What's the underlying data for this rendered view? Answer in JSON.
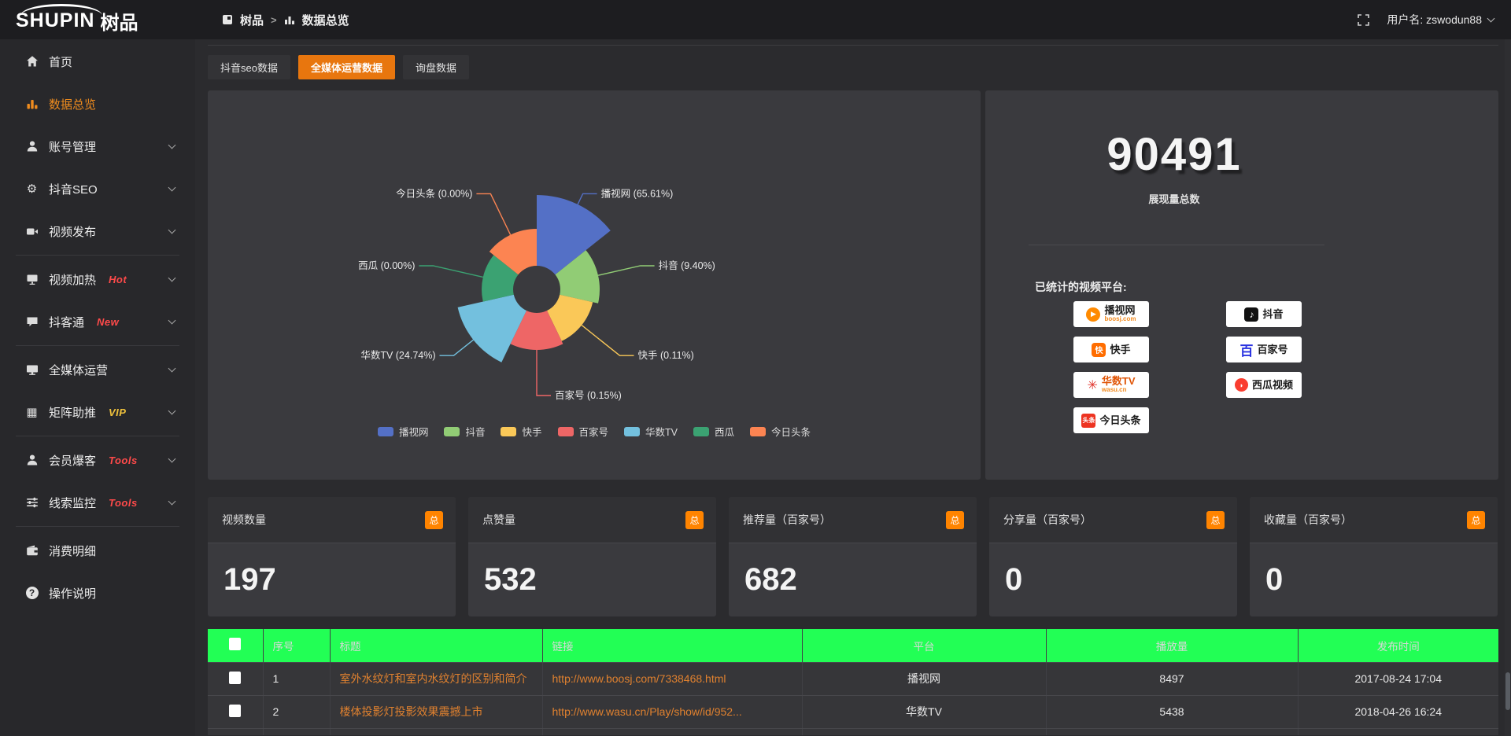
{
  "topbar": {
    "logo_main": "SHUPIN",
    "logo_sub": "树品",
    "breadcrumb": {
      "home": "树品",
      "separator": ">",
      "current": "数据总览"
    },
    "username": "用户名: zswodun88"
  },
  "sidebar": {
    "items": [
      {
        "label": "首页",
        "icon": "home"
      },
      {
        "label": "数据总览",
        "icon": "bar-chart",
        "active": true
      },
      {
        "label": "账号管理",
        "icon": "user",
        "chevron": true
      },
      {
        "label": "抖音SEO",
        "icon": "gear",
        "chevron": true
      },
      {
        "label": "视频发布",
        "icon": "video-camera",
        "chevron": true
      },
      {
        "label": "视频加热",
        "icon": "screen",
        "badge": "Hot",
        "badge_color": "#ff4a4a",
        "chevron": true
      },
      {
        "label": "抖客通",
        "icon": "chat-bubble",
        "badge": "New",
        "badge_color": "#ff4a4a",
        "chevron": true
      },
      {
        "label": "全媒体运营",
        "icon": "monitor",
        "chevron": true
      },
      {
        "label": "矩阵助推",
        "icon": "grid",
        "badge": "VIP",
        "badge_color": "#f0c23c",
        "chevron": true
      },
      {
        "label": "会员爆客",
        "icon": "person",
        "badge": "Tools",
        "badge_color": "#ff4a4a",
        "chevron": true
      },
      {
        "label": "线索监控",
        "icon": "sliders",
        "badge": "Tools",
        "badge_color": "#ff4a4a",
        "chevron": true
      },
      {
        "label": "消费明细",
        "icon": "wallet"
      },
      {
        "label": "操作说明",
        "icon": "question-circle"
      }
    ]
  },
  "tabs": [
    {
      "label": "抖音seo数据"
    },
    {
      "label": "全媒体运营数据",
      "active": true
    },
    {
      "label": "询盘数据"
    }
  ],
  "chart_data": {
    "type": "pie",
    "subtype": "nightingale-rose",
    "title": "",
    "inner_radius": 30,
    "label_radius": 135,
    "legend_position": "bottom",
    "series": [
      {
        "name": "播视网",
        "pct": 65.61,
        "color": "#5470c6",
        "radius": 120
      },
      {
        "name": "抖音",
        "pct": 9.4,
        "color": "#91cc75",
        "radius": 80
      },
      {
        "name": "快手",
        "pct": 0.11,
        "color": "#fac858",
        "radius": 73
      },
      {
        "name": "百家号",
        "pct": 0.15,
        "color": "#ee6666",
        "radius": 77
      },
      {
        "name": "华数TV",
        "pct": 24.74,
        "color": "#73c0de",
        "radius": 103
      },
      {
        "name": "西瓜",
        "pct": 0.0,
        "color": "#3ba272",
        "radius": 70
      },
      {
        "name": "今日头条",
        "pct": 0.0,
        "color": "#fc8452",
        "radius": 77
      }
    ]
  },
  "summary": {
    "total_value": "90491",
    "total_label": "展现量总数",
    "platforms_label": "已统计的视频平台:",
    "platforms": [
      {
        "name": "播视网",
        "sub": "boosj.com"
      },
      {
        "name": "快手"
      },
      {
        "name": "华数TV",
        "sub": "wasu.cn"
      },
      {
        "name": "今日头条"
      },
      {
        "name": "抖音"
      },
      {
        "name": "百家号"
      },
      {
        "name": "西瓜视频"
      }
    ]
  },
  "stat_cards": [
    {
      "label": "视频数量",
      "badge": "总",
      "value": "197"
    },
    {
      "label": "点赞量",
      "badge": "总",
      "value": "532"
    },
    {
      "label": "推荐量（百家号）",
      "badge": "总",
      "value": "682"
    },
    {
      "label": "分享量（百家号）",
      "badge": "总",
      "value": "0"
    },
    {
      "label": "收藏量（百家号）",
      "badge": "总",
      "value": "0"
    }
  ],
  "table": {
    "columns": [
      "序号",
      "标题",
      "链接",
      "平台",
      "播放量",
      "发布时间"
    ],
    "rows": [
      {
        "index": "1",
        "title": "室外水纹灯和室内水纹灯的区别和简介",
        "link": "http://www.boosj.com/7338468.html",
        "platform": "播视网",
        "plays": "8497",
        "time": "2017-08-24 17:04"
      },
      {
        "index": "2",
        "title": "楼体投影灯投影效果震撼上市",
        "link": "http://www.wasu.cn/Play/show/id/952...",
        "platform": "华数TV",
        "plays": "5438",
        "time": "2018-04-26 16:24"
      }
    ]
  },
  "colors": {
    "accent_orange": "#e8760e",
    "badge_orange": "#ff8400",
    "link_orange": "#e0812f",
    "hot_red": "#ff4a4a",
    "vip_gold": "#f0c23c",
    "panel_bg": "#3a3a3e",
    "page_bg": "#2b2b2e",
    "topbar_bg": "#1d1d20"
  }
}
